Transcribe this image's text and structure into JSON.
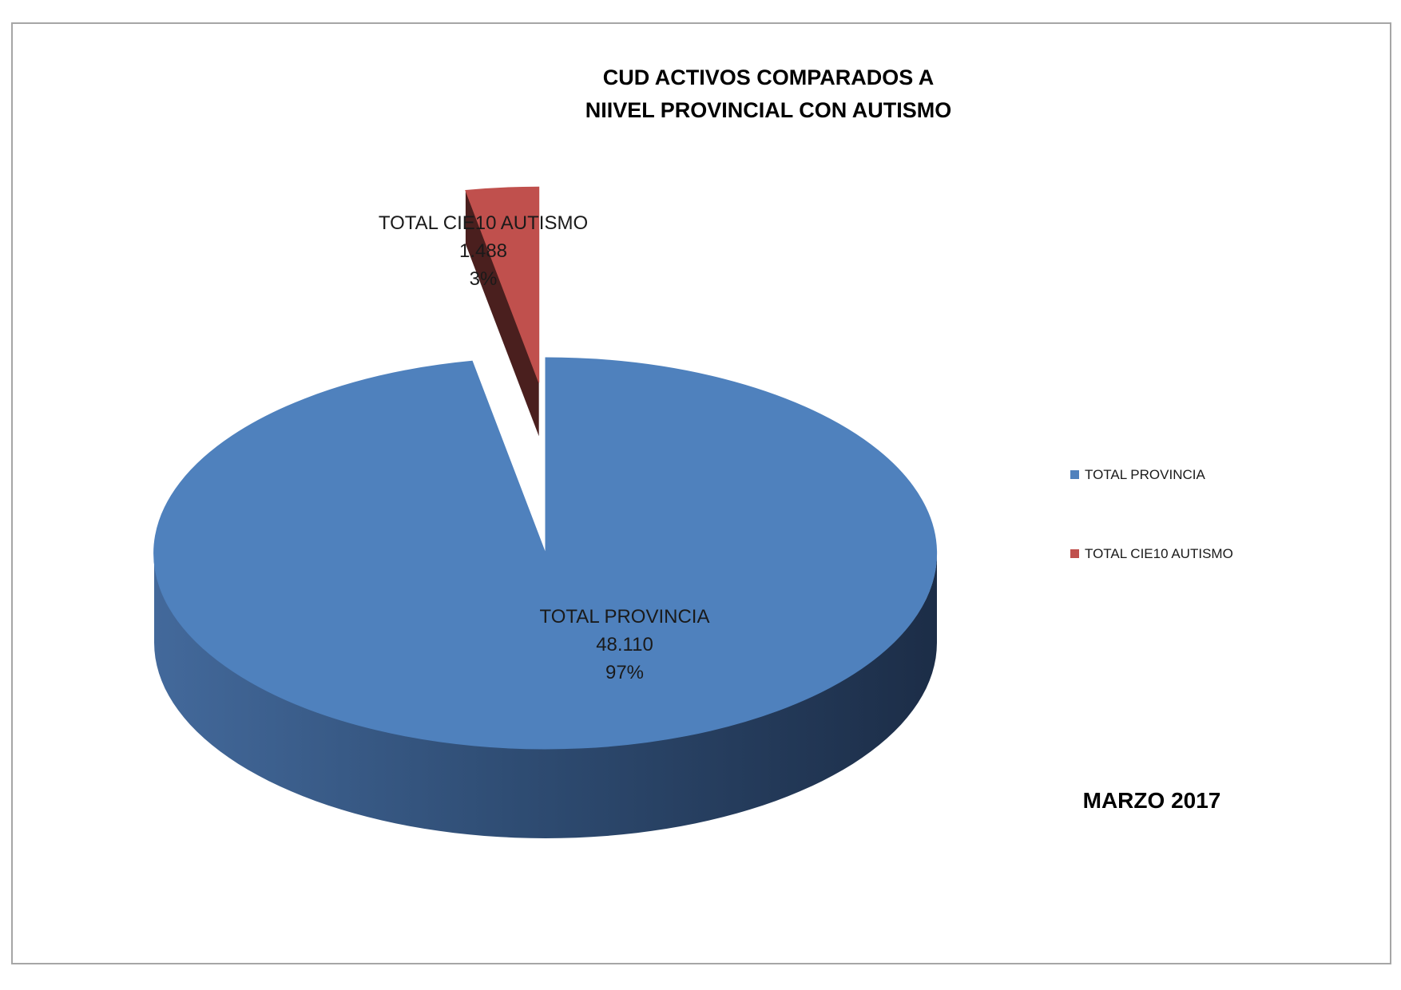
{
  "chart_data": {
    "type": "pie",
    "title_lines": [
      "CUD  ACTIVOS  COMPARADOS  A",
      "NIIVEL PROVINCIAL CON AUTISMO"
    ],
    "categories": [
      "TOTAL PROVINCIA",
      "TOTAL CIE10 AUTISMO"
    ],
    "values": [
      48110,
      1488
    ],
    "value_labels": [
      "48.110",
      "1.488"
    ],
    "percent_labels": [
      "97%",
      "3%"
    ],
    "colors": [
      "#4f81bd",
      "#c0504d"
    ],
    "legend_placement": "right",
    "exploded_slice": "TOTAL CIE10 AUTISMO",
    "style": "3d"
  },
  "footnote": "MARZO 2017"
}
